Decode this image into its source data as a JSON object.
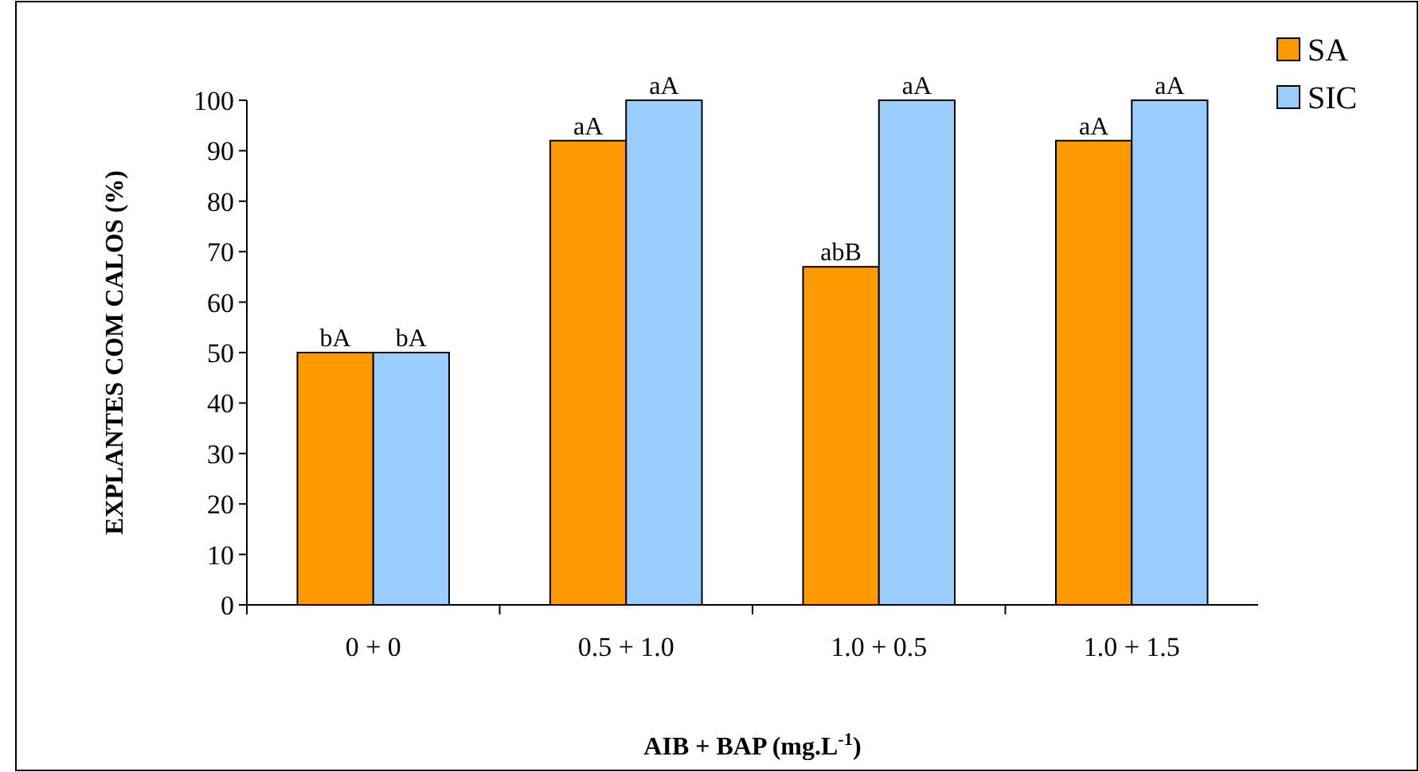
{
  "chart_data": {
    "type": "bar",
    "xlabel": "AIB + BAP (mg.L$^{-1}$)",
    "ylabel": "EXPLANTES COM CALOS (%)",
    "categories": [
      "0 + 0",
      "0.5 + 1.0",
      "1.0 + 0.5",
      "1.0 + 1.5"
    ],
    "series": [
      {
        "name": "SA",
        "color": "#ff9900",
        "values": [
          50,
          92,
          67,
          92
        ],
        "value_labels": [
          "bA",
          "aA",
          "abB",
          "aA"
        ]
      },
      {
        "name": "SIC",
        "color": "#99ccff",
        "values": [
          50,
          100,
          100,
          100
        ],
        "value_labels": [
          "bA",
          "aA",
          "aA",
          "aA"
        ]
      }
    ],
    "ylim": [
      0,
      100
    ],
    "yticks": [
      0,
      10,
      20,
      30,
      40,
      50,
      60,
      70,
      80,
      90,
      100
    ],
    "grid": false,
    "legend": "top right"
  }
}
